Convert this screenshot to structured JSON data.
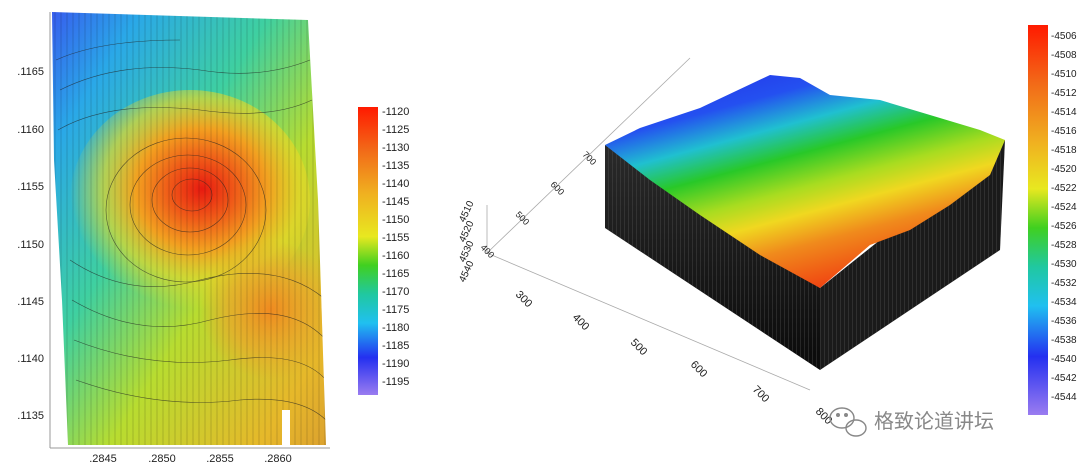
{
  "left_map": {
    "y_ticks": [
      ".1165",
      ".1160",
      ".1155",
      ".1150",
      ".1145",
      ".1140",
      ".1135"
    ],
    "x_ticks": [
      ".2845",
      ".2850",
      ".2855",
      ".2860"
    ],
    "colorbar_ticks": [
      "-1120",
      "-1125",
      "-1130",
      "-1135",
      "-1140",
      "-1145",
      "-1150",
      "-1155",
      "-1160",
      "-1165",
      "-1170",
      "-1175",
      "-1180",
      "-1185",
      "-1190",
      "-1195"
    ]
  },
  "right_map": {
    "depth_ticks": [
      "4510",
      "4520",
      "4530",
      "4540"
    ],
    "x_ticks": [
      "300",
      "400",
      "500",
      "600",
      "700",
      "800"
    ],
    "y_ticks": [
      "700",
      "600",
      "500",
      "400"
    ],
    "colorbar_ticks": [
      "-4506",
      "-4508",
      "-4510",
      "-4512",
      "-4514",
      "-4516",
      "-4518",
      "-4520",
      "-4522",
      "-4524",
      "-4526",
      "-4528",
      "-4530",
      "-4532",
      "-4534",
      "-4536",
      "-4538",
      "-4540",
      "-4542",
      "-4544"
    ]
  },
  "watermark": {
    "text": "格致论道讲坛",
    "icon": "wechat-logo-icon"
  },
  "colors": {
    "high": "#ff2a00",
    "orange": "#f08a1c",
    "yellow": "#f2e31a",
    "green": "#22c21e",
    "cyan": "#1ec8e0",
    "blue": "#2434f0",
    "low": "#8a6cf0"
  }
}
